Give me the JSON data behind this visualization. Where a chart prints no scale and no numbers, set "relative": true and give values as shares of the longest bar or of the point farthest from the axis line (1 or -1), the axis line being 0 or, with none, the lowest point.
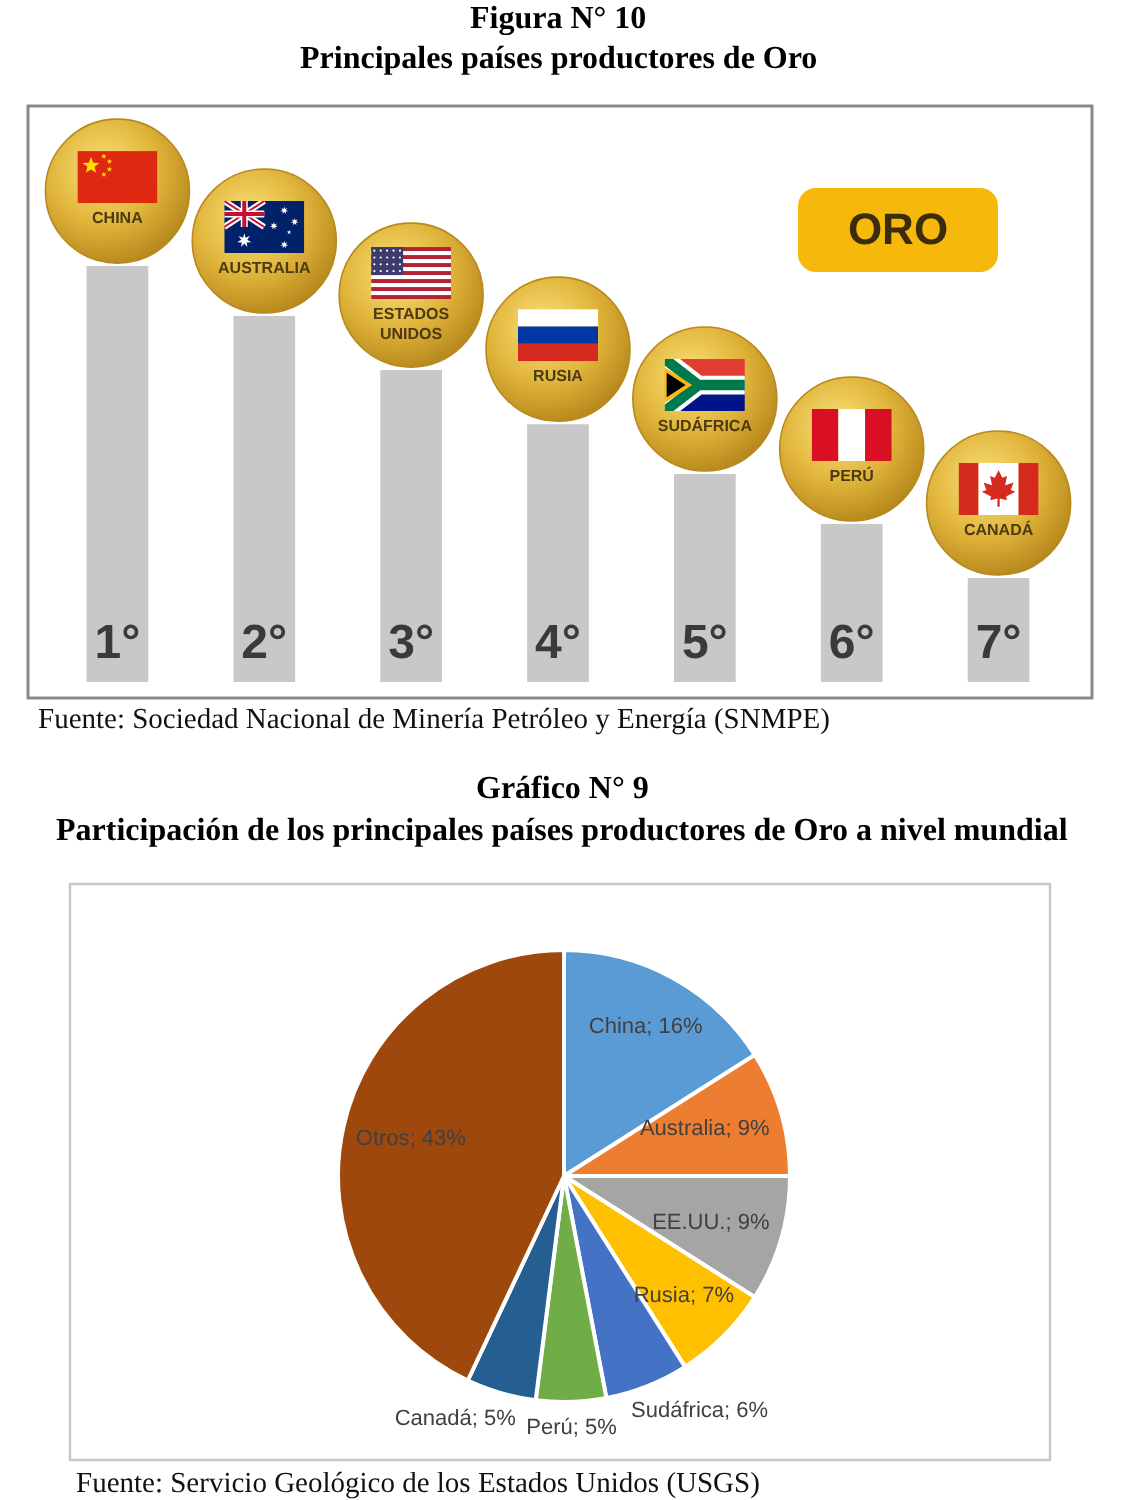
{
  "chart_data": [
    {
      "type": "bar",
      "relative": true,
      "title": "Figura N° 10",
      "subtitle": "Principales países productores de Oro",
      "categories": [
        "1°",
        "2°",
        "3°",
        "4°",
        "5°",
        "6°",
        "7°"
      ],
      "values": [
        1,
        0.88,
        0.75,
        0.62,
        0.5,
        0.38,
        0.25
      ],
      "color": "#c8c8c8",
      "annotations": [
        {
          "text": "CHINA",
          "x": "1°",
          "y": 1
        },
        {
          "text": "AUSTRALIA",
          "x": "2°",
          "y": 0.88
        },
        {
          "text": "ESTADOS\nUNIDOS",
          "x": "3°",
          "y": 0.75
        },
        {
          "text": "RUSIA",
          "x": "4°",
          "y": 0.62
        },
        {
          "text": "SUDÁFRICA",
          "x": "5°",
          "y": 0.5
        },
        {
          "text": "PERÚ",
          "x": "6°",
          "y": 0.38
        },
        {
          "text": "CANADÁ",
          "x": "7°",
          "y": 0.25
        },
        "ORO",
        "Fuente: Sociedad Nacional de Minería Petróleo y Energía (SNMPE)"
      ]
    },
    {
      "type": "pie",
      "title": "Gráfico N° 9",
      "subtitle": "Participación de los principales países productores de Oro a nivel mundial",
      "categories": [
        "China",
        "Australia",
        "EE.UU.",
        "Rusia",
        "Sudáfrica",
        "Perú",
        "Canadá",
        "Otros"
      ],
      "values": [
        16,
        9,
        9,
        7,
        6,
        5,
        5,
        43
      ],
      "colors": [
        "#5b9bd5",
        "#ed7d31",
        "#a5a5a5",
        "#ffc000",
        "#4472c4",
        "#70ad47",
        "#255e91",
        "#9e480e"
      ],
      "value_labels": [
        "16%",
        "9%",
        "9%",
        "7%",
        "6%",
        "5%",
        "5%",
        "43%"
      ],
      "annotations": [
        "Fuente: Servicio Geológico de los Estados Unidos (USGS)"
      ]
    }
  ]
}
